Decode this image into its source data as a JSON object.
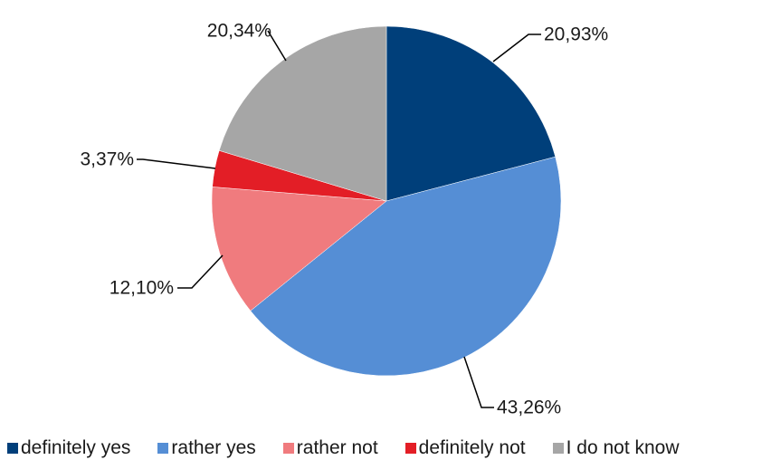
{
  "chart_data": {
    "type": "pie",
    "title": "",
    "start_angle_deg": 0,
    "direction": "clockwise",
    "slices": [
      {
        "label": "definitely yes",
        "value": 20.93,
        "value_label": "20,93%",
        "color": "#003F7A"
      },
      {
        "label": "rather yes",
        "value": 43.26,
        "value_label": "43,26%",
        "color": "#558ED5"
      },
      {
        "label": "rather not",
        "value": 12.1,
        "value_label": "12,10%",
        "color": "#F07B7E"
      },
      {
        "label": "definitely not",
        "value": 3.37,
        "value_label": "3,37%",
        "color": "#E31E26"
      },
      {
        "label": "I do not know",
        "value": 20.34,
        "value_label": "20,34%",
        "color": "#A6A6A6"
      }
    ],
    "legend_position": "bottom"
  }
}
